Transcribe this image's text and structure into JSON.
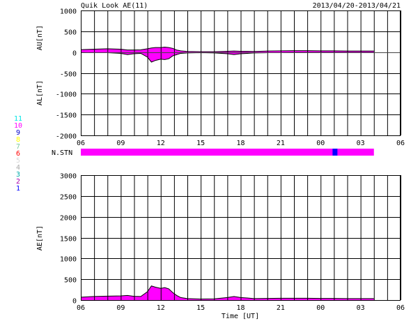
{
  "title": "Quik Look AE(11)",
  "date_range": "2013/04/20-2013/04/21",
  "xlabel": "Time [UT]",
  "x_ticks": [
    "06",
    "09",
    "12",
    "15",
    "18",
    "21",
    "00",
    "03",
    "06"
  ],
  "stn_label": "N.STN",
  "station_legend": [
    {
      "num": "11",
      "color": "#00e5e5"
    },
    {
      "num": "10",
      "color": "#ff00ff"
    },
    {
      "num": "9",
      "color": "#0000cc"
    },
    {
      "num": "8",
      "color": "#ffff00"
    },
    {
      "num": "7",
      "color": "#7ec8a0"
    },
    {
      "num": "6",
      "color": "#ff0000"
    },
    {
      "num": "5",
      "color": "#d8d8d8"
    },
    {
      "num": "4",
      "color": "#aaaaaa"
    },
    {
      "num": "3",
      "color": "#00aaaa"
    },
    {
      "num": "2",
      "color": "#aa00aa"
    },
    {
      "num": "1",
      "color": "#0000ff"
    }
  ],
  "colors": {
    "fill": "#ff00ff",
    "stn_bar": "#ff00ff",
    "stn_gap": "#0000ff"
  },
  "chart_data": [
    {
      "type": "area",
      "panel": "AU/AL",
      "ylabel_top": "AU[nT]",
      "ylabel_bottom": "AL[nT]",
      "xlim": [
        6,
        30
      ],
      "ylim": [
        -2000,
        1000
      ],
      "y_ticks": [
        "1000",
        "500",
        "0",
        "-500",
        "-1000",
        "-1500",
        "-2000"
      ],
      "x": [
        6,
        7,
        8,
        9,
        9.5,
        10,
        10.5,
        11,
        11.3,
        11.6,
        12,
        12.3,
        12.6,
        12.9,
        13.2,
        13.5,
        14,
        15,
        16,
        17,
        17.5,
        18,
        18.5,
        19,
        20,
        21,
        22,
        23,
        24,
        25,
        26,
        27,
        28
      ],
      "series": [
        {
          "name": "AU",
          "values": [
            60,
            70,
            80,
            70,
            50,
            50,
            55,
            80,
            100,
            110,
            110,
            120,
            110,
            90,
            50,
            30,
            15,
            10,
            10,
            20,
            25,
            20,
            20,
            15,
            25,
            30,
            35,
            35,
            30,
            30,
            25,
            25,
            25
          ]
        },
        {
          "name": "AL",
          "values": [
            -10,
            -15,
            -15,
            -30,
            -60,
            -40,
            -30,
            -120,
            -240,
            -200,
            -170,
            -180,
            -160,
            -90,
            -60,
            -30,
            -20,
            -15,
            -20,
            -40,
            -60,
            -40,
            -30,
            -20,
            -15,
            -15,
            -10,
            -10,
            -10,
            -10,
            -10,
            -10,
            -10
          ]
        }
      ]
    },
    {
      "type": "bar",
      "panel": "N.STN",
      "x_start": 6,
      "x_end": 28,
      "gap_at": 25
    },
    {
      "type": "area",
      "panel": "AE",
      "ylabel": "AE[nT]",
      "xlim": [
        6,
        30
      ],
      "ylim": [
        0,
        3000
      ],
      "y_ticks": [
        "3000",
        "2500",
        "2000",
        "1500",
        "1000",
        "500",
        "0"
      ],
      "x": [
        6,
        7,
        8,
        9,
        9.5,
        10,
        10.5,
        11,
        11.3,
        11.6,
        12,
        12.3,
        12.6,
        12.9,
        13.2,
        13.5,
        14,
        15,
        16,
        17,
        17.5,
        18,
        18.5,
        19,
        20,
        21,
        22,
        23,
        24,
        25,
        26,
        27,
        28
      ],
      "series": [
        {
          "name": "AE",
          "values": [
            70,
            85,
            95,
            100,
            110,
            90,
            85,
            200,
            340,
            310,
            280,
            300,
            270,
            180,
            110,
            60,
            35,
            25,
            30,
            60,
            85,
            60,
            50,
            35,
            40,
            45,
            45,
            45,
            40,
            40,
            35,
            35,
            35
          ]
        }
      ]
    }
  ]
}
